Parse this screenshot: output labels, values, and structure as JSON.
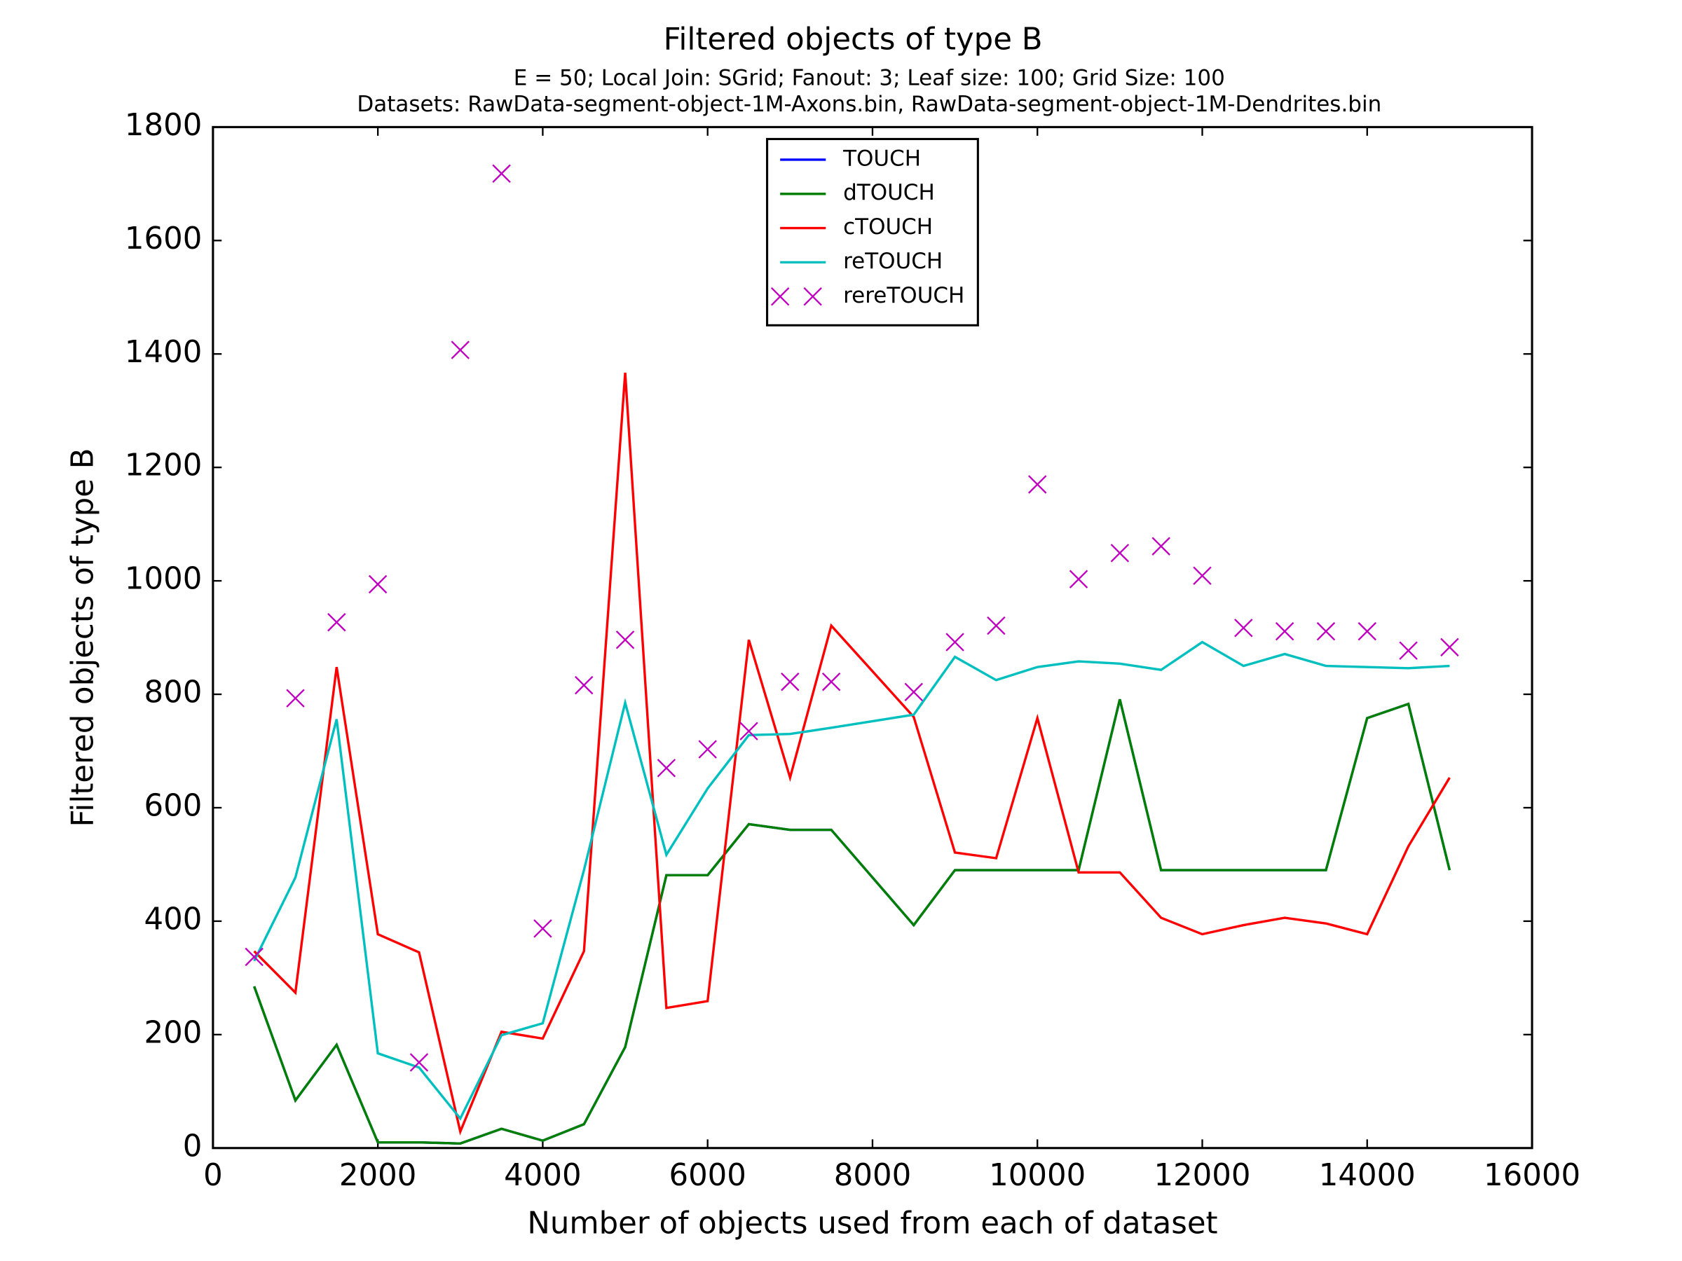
{
  "chart_data": {
    "type": "line",
    "title": "Filtered objects of type B",
    "subtitle": [
      "E = 50; Local Join: SGrid; Fanout: 3; Leaf size: 100; Grid Size: 100",
      "Datasets: RawData-segment-object-1M-Axons.bin, RawData-segment-object-1M-Dendrites.bin"
    ],
    "x_label": "Number of objects used from each of dataset",
    "y_label": "Filtered objects of type B",
    "x": [
      500,
      1000,
      1500,
      2000,
      2500,
      3000,
      3500,
      4000,
      4500,
      5000,
      5500,
      6000,
      6500,
      7000,
      7500,
      8500,
      9000,
      9500,
      10000,
      10500,
      11000,
      11500,
      12000,
      12500,
      13000,
      13500,
      14000,
      14500,
      15000
    ],
    "series": [
      {
        "name": "TOUCH",
        "color": "#0000ff",
        "marker": "none",
        "values": [
          285,
          84,
          182,
          10,
          10,
          8,
          34,
          13,
          42,
          178,
          481,
          481,
          571,
          561,
          561,
          393,
          490,
          490,
          490,
          490,
          791,
          490,
          490,
          490,
          490,
          490,
          758,
          783,
          490
        ]
      },
      {
        "name": "dTOUCH",
        "color": "#008000",
        "marker": "none",
        "values": [
          285,
          84,
          182,
          10,
          10,
          8,
          34,
          13,
          42,
          178,
          481,
          481,
          571,
          561,
          561,
          393,
          490,
          490,
          490,
          490,
          791,
          490,
          490,
          490,
          490,
          490,
          758,
          783,
          490
        ]
      },
      {
        "name": "cTOUCH",
        "color": "#ff0000",
        "marker": "none",
        "values": [
          347,
          274,
          848,
          377,
          345,
          29,
          205,
          193,
          347,
          1367,
          247,
          259,
          896,
          653,
          921,
          760,
          521,
          511,
          758,
          486,
          486,
          406,
          377,
          393,
          406,
          396,
          377,
          532,
          653
        ]
      },
      {
        "name": "reTOUCH",
        "color": "#00bfbf",
        "marker": "none",
        "values": [
          330,
          477,
          756,
          167,
          142,
          52,
          199,
          220,
          490,
          785,
          517,
          634,
          728,
          730,
          741,
          764,
          866,
          825,
          848,
          858,
          854,
          843,
          892,
          850,
          871,
          850,
          848,
          846,
          850
        ]
      },
      {
        "name": "rereTOUCH",
        "color": "#bf00bf",
        "marker": "x",
        "values": [
          337,
          793,
          927,
          994,
          151,
          1407,
          1718,
          387,
          816,
          896,
          670,
          703,
          735,
          822,
          822,
          804,
          892,
          921,
          1170,
          1003,
          1049,
          1061,
          1009,
          917,
          911,
          911,
          911,
          877,
          883
        ]
      }
    ],
    "xlim": [
      0,
      16000
    ],
    "xticks": [
      0,
      2000,
      4000,
      6000,
      8000,
      10000,
      12000,
      14000,
      16000
    ],
    "ylim": [
      0,
      1800
    ],
    "yticks": [
      0,
      200,
      400,
      600,
      800,
      1000,
      1200,
      1400,
      1600,
      1800
    ],
    "grid": false,
    "legend": "upper center"
  }
}
